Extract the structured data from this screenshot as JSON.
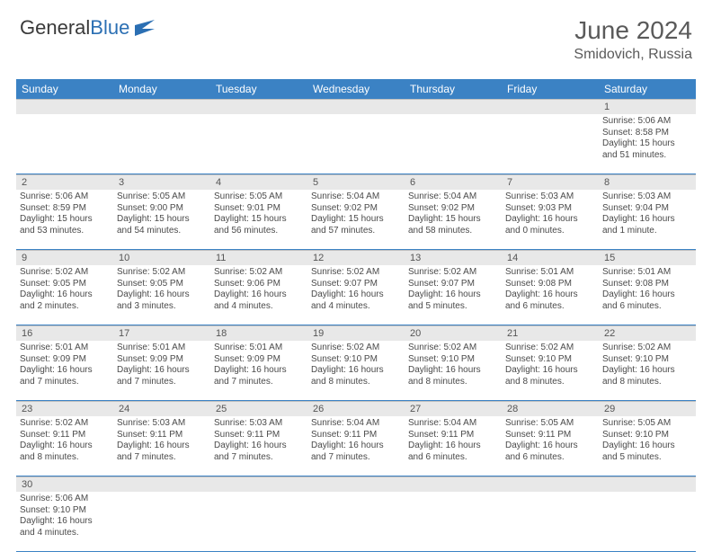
{
  "logo": {
    "part1": "General",
    "part2": "Blue"
  },
  "title": "June 2024",
  "location": "Smidovich, Russia",
  "header_color": "#3b82c4",
  "grey_color": "#e8e8e8",
  "days": [
    "Sunday",
    "Monday",
    "Tuesday",
    "Wednesday",
    "Thursday",
    "Friday",
    "Saturday"
  ],
  "weeks": [
    [
      null,
      null,
      null,
      null,
      null,
      null,
      {
        "n": "1",
        "sr": "Sunrise: 5:06 AM",
        "ss": "Sunset: 8:58 PM",
        "dl": "Daylight: 15 hours and 51 minutes."
      }
    ],
    [
      {
        "n": "2",
        "sr": "Sunrise: 5:06 AM",
        "ss": "Sunset: 8:59 PM",
        "dl": "Daylight: 15 hours and 53 minutes."
      },
      {
        "n": "3",
        "sr": "Sunrise: 5:05 AM",
        "ss": "Sunset: 9:00 PM",
        "dl": "Daylight: 15 hours and 54 minutes."
      },
      {
        "n": "4",
        "sr": "Sunrise: 5:05 AM",
        "ss": "Sunset: 9:01 PM",
        "dl": "Daylight: 15 hours and 56 minutes."
      },
      {
        "n": "5",
        "sr": "Sunrise: 5:04 AM",
        "ss": "Sunset: 9:02 PM",
        "dl": "Daylight: 15 hours and 57 minutes."
      },
      {
        "n": "6",
        "sr": "Sunrise: 5:04 AM",
        "ss": "Sunset: 9:02 PM",
        "dl": "Daylight: 15 hours and 58 minutes."
      },
      {
        "n": "7",
        "sr": "Sunrise: 5:03 AM",
        "ss": "Sunset: 9:03 PM",
        "dl": "Daylight: 16 hours and 0 minutes."
      },
      {
        "n": "8",
        "sr": "Sunrise: 5:03 AM",
        "ss": "Sunset: 9:04 PM",
        "dl": "Daylight: 16 hours and 1 minute."
      }
    ],
    [
      {
        "n": "9",
        "sr": "Sunrise: 5:02 AM",
        "ss": "Sunset: 9:05 PM",
        "dl": "Daylight: 16 hours and 2 minutes."
      },
      {
        "n": "10",
        "sr": "Sunrise: 5:02 AM",
        "ss": "Sunset: 9:05 PM",
        "dl": "Daylight: 16 hours and 3 minutes."
      },
      {
        "n": "11",
        "sr": "Sunrise: 5:02 AM",
        "ss": "Sunset: 9:06 PM",
        "dl": "Daylight: 16 hours and 4 minutes."
      },
      {
        "n": "12",
        "sr": "Sunrise: 5:02 AM",
        "ss": "Sunset: 9:07 PM",
        "dl": "Daylight: 16 hours and 4 minutes."
      },
      {
        "n": "13",
        "sr": "Sunrise: 5:02 AM",
        "ss": "Sunset: 9:07 PM",
        "dl": "Daylight: 16 hours and 5 minutes."
      },
      {
        "n": "14",
        "sr": "Sunrise: 5:01 AM",
        "ss": "Sunset: 9:08 PM",
        "dl": "Daylight: 16 hours and 6 minutes."
      },
      {
        "n": "15",
        "sr": "Sunrise: 5:01 AM",
        "ss": "Sunset: 9:08 PM",
        "dl": "Daylight: 16 hours and 6 minutes."
      }
    ],
    [
      {
        "n": "16",
        "sr": "Sunrise: 5:01 AM",
        "ss": "Sunset: 9:09 PM",
        "dl": "Daylight: 16 hours and 7 minutes."
      },
      {
        "n": "17",
        "sr": "Sunrise: 5:01 AM",
        "ss": "Sunset: 9:09 PM",
        "dl": "Daylight: 16 hours and 7 minutes."
      },
      {
        "n": "18",
        "sr": "Sunrise: 5:01 AM",
        "ss": "Sunset: 9:09 PM",
        "dl": "Daylight: 16 hours and 7 minutes."
      },
      {
        "n": "19",
        "sr": "Sunrise: 5:02 AM",
        "ss": "Sunset: 9:10 PM",
        "dl": "Daylight: 16 hours and 8 minutes."
      },
      {
        "n": "20",
        "sr": "Sunrise: 5:02 AM",
        "ss": "Sunset: 9:10 PM",
        "dl": "Daylight: 16 hours and 8 minutes."
      },
      {
        "n": "21",
        "sr": "Sunrise: 5:02 AM",
        "ss": "Sunset: 9:10 PM",
        "dl": "Daylight: 16 hours and 8 minutes."
      },
      {
        "n": "22",
        "sr": "Sunrise: 5:02 AM",
        "ss": "Sunset: 9:10 PM",
        "dl": "Daylight: 16 hours and 8 minutes."
      }
    ],
    [
      {
        "n": "23",
        "sr": "Sunrise: 5:02 AM",
        "ss": "Sunset: 9:11 PM",
        "dl": "Daylight: 16 hours and 8 minutes."
      },
      {
        "n": "24",
        "sr": "Sunrise: 5:03 AM",
        "ss": "Sunset: 9:11 PM",
        "dl": "Daylight: 16 hours and 7 minutes."
      },
      {
        "n": "25",
        "sr": "Sunrise: 5:03 AM",
        "ss": "Sunset: 9:11 PM",
        "dl": "Daylight: 16 hours and 7 minutes."
      },
      {
        "n": "26",
        "sr": "Sunrise: 5:04 AM",
        "ss": "Sunset: 9:11 PM",
        "dl": "Daylight: 16 hours and 7 minutes."
      },
      {
        "n": "27",
        "sr": "Sunrise: 5:04 AM",
        "ss": "Sunset: 9:11 PM",
        "dl": "Daylight: 16 hours and 6 minutes."
      },
      {
        "n": "28",
        "sr": "Sunrise: 5:05 AM",
        "ss": "Sunset: 9:11 PM",
        "dl": "Daylight: 16 hours and 6 minutes."
      },
      {
        "n": "29",
        "sr": "Sunrise: 5:05 AM",
        "ss": "Sunset: 9:10 PM",
        "dl": "Daylight: 16 hours and 5 minutes."
      }
    ],
    [
      {
        "n": "30",
        "sr": "Sunrise: 5:06 AM",
        "ss": "Sunset: 9:10 PM",
        "dl": "Daylight: 16 hours and 4 minutes."
      },
      null,
      null,
      null,
      null,
      null,
      null
    ]
  ]
}
